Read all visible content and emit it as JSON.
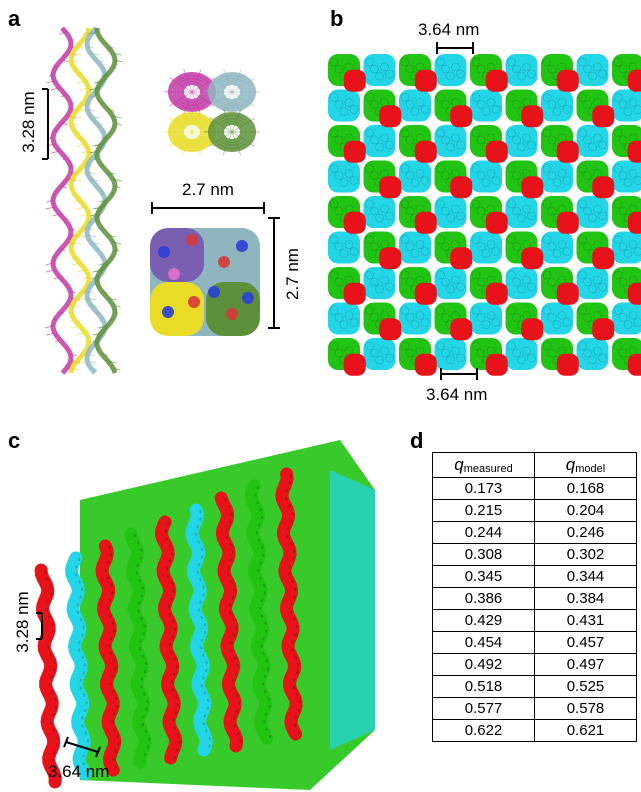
{
  "panels": {
    "a": {
      "label": "a",
      "dim_pitch": "3.28 nm",
      "dim_width": "2.7 nm",
      "dim_height": "2.7 nm"
    },
    "b": {
      "label": "b",
      "dim_top": "3.64 nm",
      "dim_bottom": "3.64 nm"
    },
    "c": {
      "label": "c",
      "dim_pitch": "3.28 nm",
      "dim_spacing": "3.64 nm"
    },
    "d": {
      "label": "d"
    }
  },
  "colors": {
    "green": "#22c414",
    "cyan": "#22d6e8",
    "red": "#e8121a",
    "magenta": "#c23aa6",
    "yellow": "#e8dc26",
    "olive": "#5e8f3a",
    "slate": "#8fb6c0"
  },
  "table": {
    "header_measured_symbol": "q",
    "header_measured_sub": "measured",
    "header_model_symbol": "q",
    "header_model_sub": "model",
    "rows": [
      {
        "measured": "0.173",
        "model": "0.168"
      },
      {
        "measured": "0.215",
        "model": "0.204"
      },
      {
        "measured": "0.244",
        "model": "0.246"
      },
      {
        "measured": "0.308",
        "model": "0.302"
      },
      {
        "measured": "0.345",
        "model": "0.344"
      },
      {
        "measured": "0.386",
        "model": "0.384"
      },
      {
        "measured": "0.429",
        "model": "0.431"
      },
      {
        "measured": "0.454",
        "model": "0.457"
      },
      {
        "measured": "0.492",
        "model": "0.497"
      },
      {
        "measured": "0.518",
        "model": "0.525"
      },
      {
        "measured": "0.577",
        "model": "0.578"
      },
      {
        "measured": "0.622",
        "model": "0.621"
      }
    ]
  }
}
